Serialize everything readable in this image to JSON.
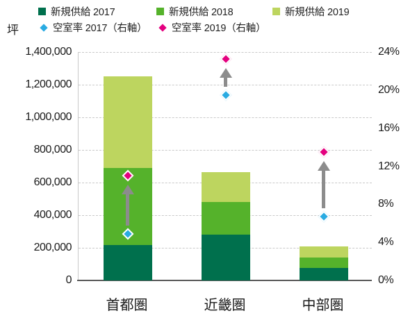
{
  "colors": {
    "supply_2017": "#00704d",
    "supply_2018": "#55b22b",
    "supply_2019": "#bdd55f",
    "vacancy_2017": "#29abe2",
    "vacancy_2019": "#e4007f",
    "trend_arrow": "#8c8c8c",
    "gridline": "#c9c9c9",
    "axis_line": "#595959",
    "text": "#1a1a1a"
  },
  "chart_data": {
    "type": "bar",
    "subtype": "stacked-bar-with-scatter-combo",
    "title": "",
    "categories": [
      "首都圏",
      "近畿圏",
      "中部圏"
    ],
    "category_keys": [
      "shutoken",
      "kinkiken",
      "chubuken"
    ],
    "bar_series": [
      {
        "key": "supply-2017",
        "name": "新規供給 2017",
        "color_key": "supply_2017",
        "values": [
          215000,
          280000,
          75000
        ]
      },
      {
        "key": "supply-2018",
        "name": "新規供給 2018",
        "color_key": "supply_2018",
        "values": [
          475000,
          200000,
          65000
        ]
      },
      {
        "key": "supply-2019",
        "name": "新規供給 2019",
        "color_key": "supply_2019",
        "values": [
          560000,
          185000,
          70000
        ]
      }
    ],
    "marker_series": [
      {
        "key": "vacancy-2017",
        "name": "空室率 2017（右軸）",
        "color_key": "vacancy_2017",
        "values": [
          4.9,
          19.5,
          6.7
        ]
      },
      {
        "key": "vacancy-2019",
        "name": "空室率 2019（右軸）",
        "color_key": "vacancy_2019",
        "values": [
          11.0,
          23.3,
          13.5
        ]
      }
    ],
    "left_axis": {
      "label": "坪",
      "min": 0,
      "max": 1400000,
      "ticks": [
        "0",
        "200,000",
        "400,000",
        "600,000",
        "800,000",
        "1,000,000",
        "1,200,000",
        "1,400,000"
      ],
      "tick_values": [
        0,
        200000,
        400000,
        600000,
        800000,
        1000000,
        1200000,
        1400000
      ]
    },
    "right_axis": {
      "label": "",
      "min": 0,
      "max": 24,
      "ticks": [
        "0%",
        "4%",
        "8%",
        "12%",
        "16%",
        "20%",
        "24%"
      ],
      "tick_values": [
        0,
        4,
        8,
        12,
        16,
        20,
        24
      ]
    },
    "annotations": [
      {
        "type": "up-arrow",
        "per_category": true,
        "from_series": "空室率 2017（右軸）",
        "to_series": "空室率 2019（右軸）"
      }
    ],
    "grid": true,
    "legend_position": "top"
  }
}
